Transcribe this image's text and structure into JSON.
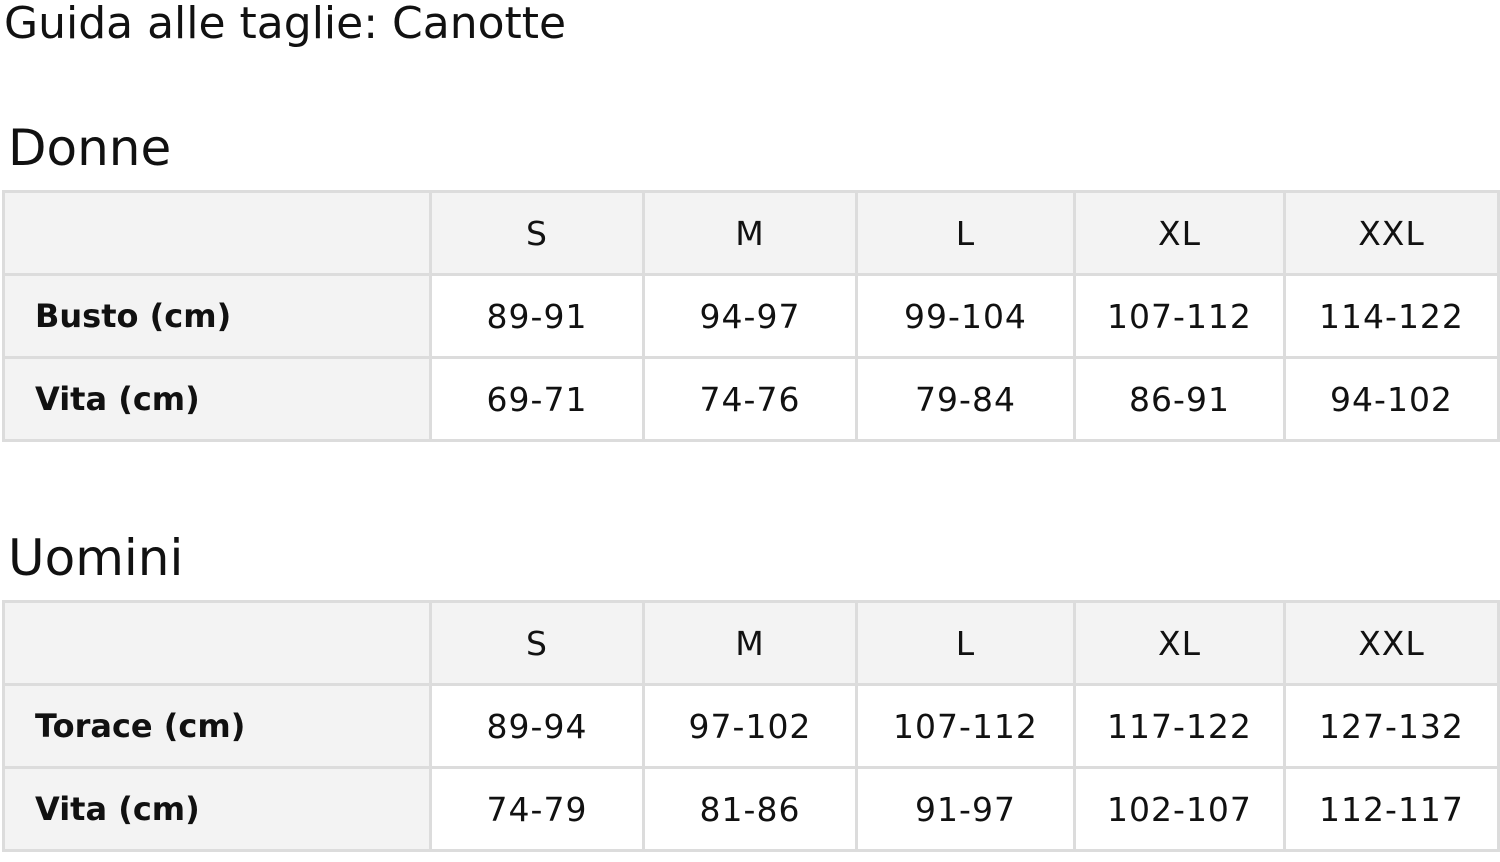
{
  "title": "Guida alle taglie: Canotte",
  "sizes": [
    "S",
    "M",
    "L",
    "XL",
    "XXL"
  ],
  "sections": [
    {
      "heading": "Donne",
      "rows": [
        {
          "label": "Busto (cm)",
          "values": [
            "89-91",
            "94-97",
            "99-104",
            "107-112",
            "114-122"
          ]
        },
        {
          "label": "Vita (cm)",
          "values": [
            "69-71",
            "74-76",
            "79-84",
            "86-91",
            "94-102"
          ]
        }
      ]
    },
    {
      "heading": "Uomini",
      "rows": [
        {
          "label": "Torace (cm)",
          "values": [
            "89-94",
            "97-102",
            "107-112",
            "117-122",
            "127-132"
          ]
        },
        {
          "label": "Vita (cm)",
          "values": [
            "74-79",
            "81-86",
            "91-97",
            "102-107",
            "112-117"
          ]
        }
      ]
    }
  ]
}
